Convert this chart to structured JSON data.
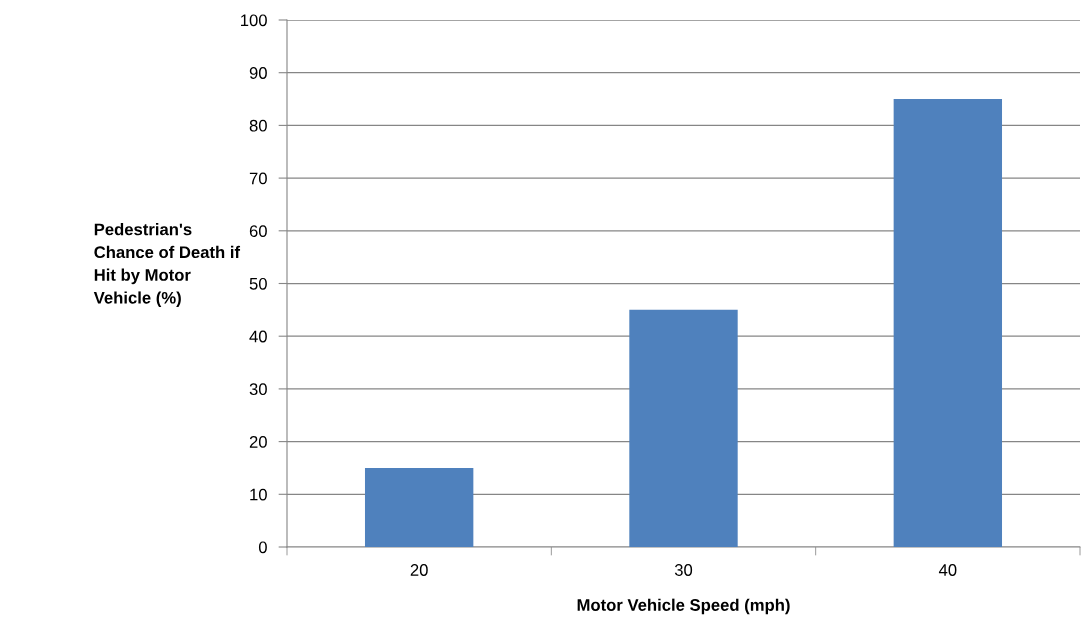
{
  "chart_data": {
    "type": "bar",
    "xlabel": "Motor Vehicle Speed (mph)",
    "ylabel": "Pedestrian's\nChance of Death if\nHit by Motor\nVehicle (%)",
    "categories": [
      "20",
      "30",
      "40"
    ],
    "values": [
      15,
      45,
      85
    ],
    "color": "#4f81bd",
    "ylim": [
      0,
      100
    ],
    "yticks": [
      0,
      10,
      20,
      30,
      40,
      50,
      60,
      70,
      80,
      90,
      100
    ],
    "grid": "y",
    "legend": false
  }
}
